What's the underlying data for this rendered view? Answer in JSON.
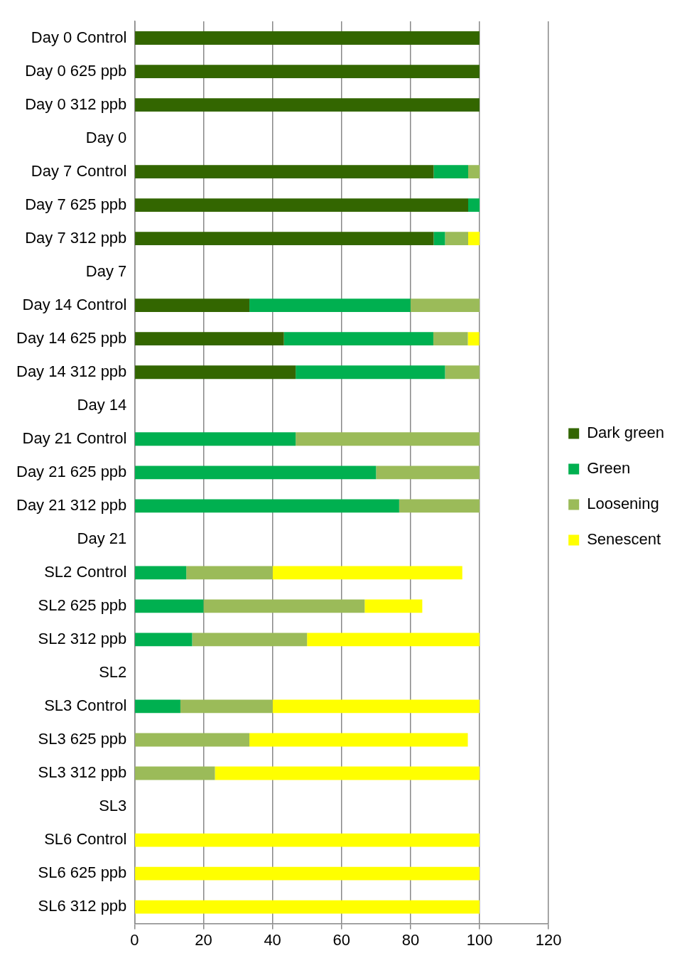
{
  "chart_data": {
    "type": "bar",
    "orientation": "horizontal",
    "stacked": true,
    "categories": [
      "Day 0 Control",
      "Day 0 625 ppb",
      "Day 0 312 ppb",
      "Day 0",
      "Day 7 Control",
      "Day 7 625 ppb",
      "Day 7 312 ppb",
      "Day 7",
      "Day 14 Control",
      "Day 14 625 ppb",
      "Day 14 312 ppb",
      "Day 14",
      "Day 21 Control",
      "Day 21 625 ppb",
      "Day 21 312 ppb",
      "Day 21",
      "SL2 Control",
      "SL2 625 ppb",
      "SL2 312 ppb",
      "SL2",
      "SL3 Control",
      "SL3 625 ppb",
      "SL3 312 ppb",
      "SL3",
      "SL6 Control",
      "SL6 625 ppb",
      "SL6 312 ppb"
    ],
    "series": [
      {
        "name": "Dark green",
        "color": "#336600",
        "values": [
          100,
          100,
          100,
          null,
          86.7,
          96.7,
          86.7,
          null,
          33.3,
          43.3,
          46.7,
          null,
          null,
          null,
          null,
          null,
          null,
          null,
          null,
          null,
          null,
          null,
          null,
          null,
          null,
          null,
          null
        ]
      },
      {
        "name": "Green",
        "color": "#00b050",
        "values": [
          null,
          null,
          null,
          null,
          10,
          3.3,
          3.3,
          null,
          46.7,
          43.3,
          43.3,
          null,
          46.7,
          70,
          76.7,
          null,
          15,
          20,
          16.7,
          null,
          13.3,
          null,
          null,
          null,
          null,
          null,
          null
        ]
      },
      {
        "name": "Loosening",
        "color": "#9bbb59",
        "values": [
          null,
          null,
          null,
          null,
          3.3,
          null,
          6.7,
          null,
          20,
          10,
          10,
          null,
          53.3,
          30,
          23.3,
          null,
          25,
          46.7,
          33.3,
          null,
          26.7,
          33.3,
          23.3,
          null,
          null,
          null,
          null
        ]
      },
      {
        "name": "Senescent",
        "color": "#ffff00",
        "values": [
          null,
          null,
          null,
          null,
          null,
          null,
          3.3,
          null,
          null,
          3.3,
          null,
          null,
          null,
          null,
          null,
          null,
          55,
          16.7,
          50,
          null,
          60,
          63.3,
          76.7,
          null,
          100,
          100,
          100
        ]
      }
    ],
    "xlim": [
      0,
      120
    ],
    "xticks": [
      0,
      20,
      40,
      60,
      80,
      100,
      120
    ],
    "grid": "x",
    "legend": "right"
  }
}
